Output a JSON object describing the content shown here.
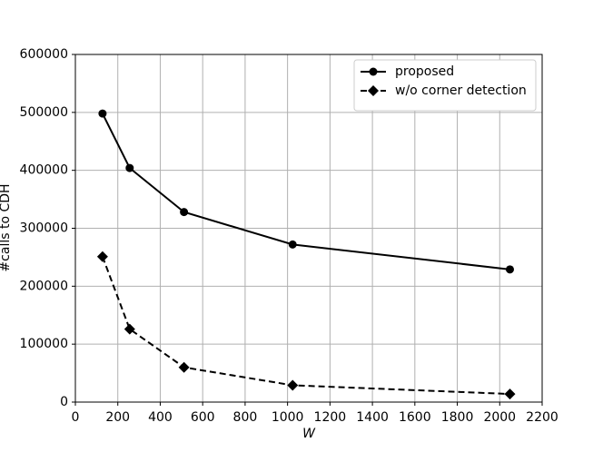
{
  "chart_data": {
    "type": "line",
    "x_label": "W",
    "y_label": "#calls to CDH",
    "x": [
      128,
      256,
      512,
      1024,
      2048
    ],
    "series": [
      {
        "name": "proposed",
        "color": "#000000",
        "linestyle": "solid",
        "marker": "circle",
        "values": [
          498000,
          404000,
          328000,
          272000,
          229000
        ]
      },
      {
        "name": "w/o corner detection",
        "color": "#000000",
        "linestyle": "dashed",
        "marker": "diamond",
        "values": [
          251000,
          126000,
          60000,
          29000,
          14000
        ]
      }
    ],
    "xlim": [
      0,
      2200
    ],
    "xticks": [
      0,
      200,
      400,
      600,
      800,
      1000,
      1200,
      1400,
      1600,
      1800,
      2000,
      2200
    ],
    "ylim": [
      0,
      600000
    ],
    "yticks": [
      0,
      100000,
      200000,
      300000,
      400000,
      500000,
      600000
    ],
    "grid": true,
    "legend": "upper right"
  }
}
